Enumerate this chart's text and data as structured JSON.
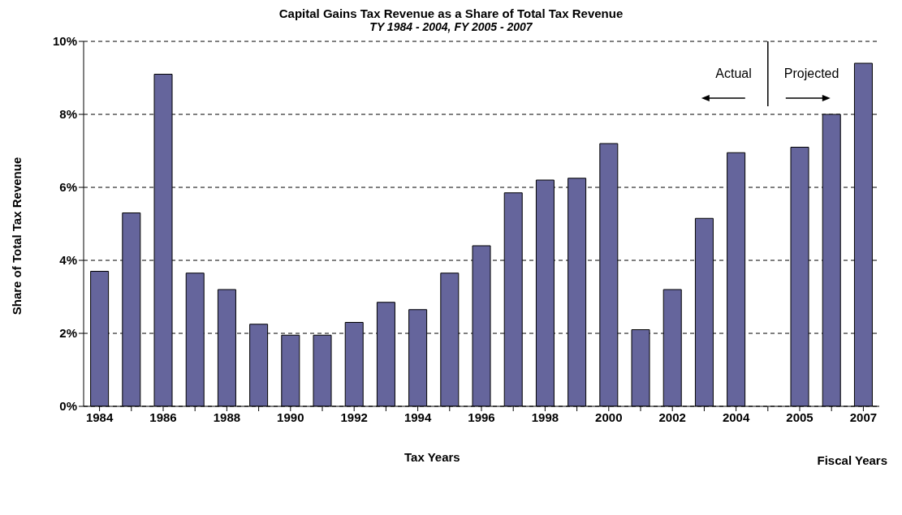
{
  "chart_data": {
    "type": "bar",
    "title": "Capital Gains Tax Revenue as a Share of Total Tax Revenue",
    "subtitle": "TY 1984 - 2004, FY 2005 - 2007",
    "ylabel": "Share of Total Tax Revenue",
    "categories": [
      "1984",
      null,
      "1986",
      null,
      "1988",
      null,
      "1990",
      null,
      "1992",
      null,
      "1994",
      null,
      "1996",
      null,
      "1998",
      null,
      "2000",
      null,
      "2002",
      null,
      "2004",
      null,
      "2005",
      null,
      "2007"
    ],
    "values": [
      3.7,
      5.3,
      9.1,
      3.65,
      3.2,
      2.25,
      1.95,
      1.95,
      2.3,
      2.85,
      2.65,
      3.65,
      4.4,
      5.85,
      6.2,
      6.25,
      7.2,
      2.1,
      3.2,
      5.15,
      6.95,
      null,
      7.1,
      8.0,
      9.4
    ],
    "color": "#65659c",
    "ylim": [
      0,
      10
    ],
    "yticks": [
      {
        "value": 0,
        "label": "0%"
      },
      {
        "value": 2,
        "label": "2%"
      },
      {
        "value": 4,
        "label": "4%"
      },
      {
        "value": 6,
        "label": "6%"
      },
      {
        "value": 8,
        "label": "8%"
      },
      {
        "value": 10,
        "label": "10%"
      }
    ],
    "grid": "y",
    "annotations": [
      "Actual",
      "Projected",
      "Tax Years",
      "Fiscal Years"
    ]
  }
}
